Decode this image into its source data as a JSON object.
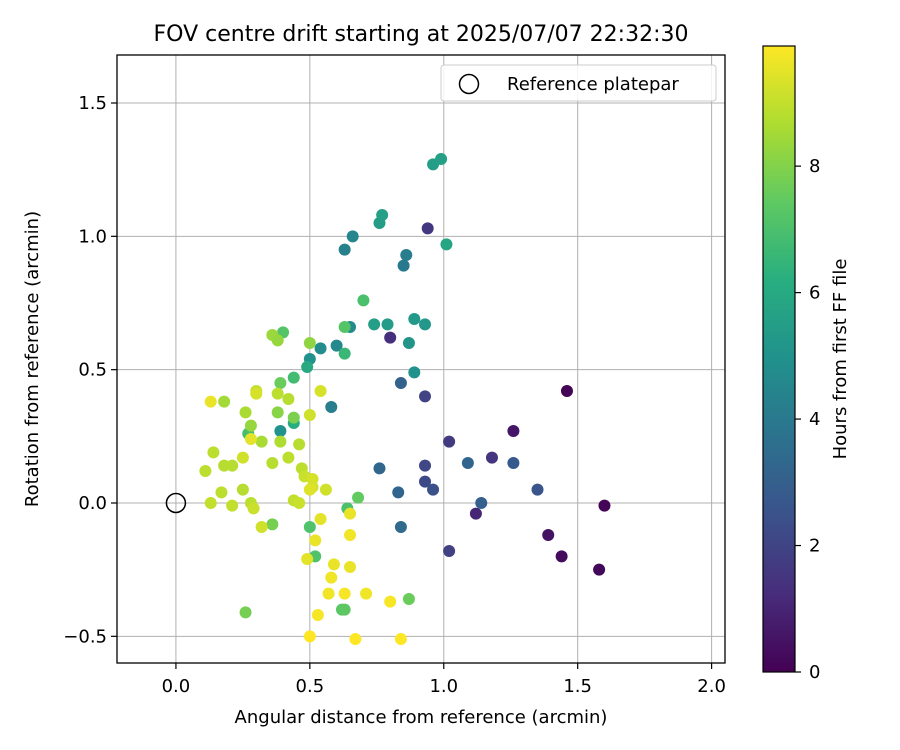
{
  "chart_data": {
    "type": "scatter",
    "title": "FOV centre drift starting at 2025/07/07 22:32:30",
    "xlabel": "Angular distance from reference (arcmin)",
    "ylabel": "Rotation from reference (arcmin)",
    "xlim": [
      -0.22,
      2.05
    ],
    "ylim": [
      -0.6,
      1.68
    ],
    "x_ticks": [
      0.0,
      0.5,
      1.0,
      1.5,
      2.0
    ],
    "x_tick_labels": [
      "0.0",
      "0.5",
      "1.0",
      "1.5",
      "2.0"
    ],
    "y_ticks": [
      -0.5,
      0.0,
      0.5,
      1.0,
      1.5
    ],
    "y_tick_labels": [
      "−0.5",
      "0.0",
      "0.5",
      "1.0",
      "1.5"
    ],
    "grid": true,
    "legend": {
      "placement": "top-right",
      "entries": [
        "Reference platepar"
      ]
    },
    "reference_point": {
      "x": 0.0,
      "y": 0.0,
      "marker": "open-circle"
    },
    "colorbar": {
      "label": "Hours from first FF file",
      "colormap": "viridis",
      "range": [
        0,
        9.9
      ],
      "ticks": [
        0,
        2,
        4,
        6,
        8
      ],
      "tick_labels": [
        "0",
        "2",
        "4",
        "6",
        "8"
      ]
    },
    "series": [
      {
        "color_by": "hours",
        "points": [
          {
            "x": 1.46,
            "y": 0.42,
            "c": 0.1
          },
          {
            "x": 1.6,
            "y": -0.01,
            "c": 0.1
          },
          {
            "x": 1.58,
            "y": -0.25,
            "c": 0.2
          },
          {
            "x": 1.44,
            "y": -0.2,
            "c": 0.3
          },
          {
            "x": 1.39,
            "y": -0.12,
            "c": 0.5
          },
          {
            "x": 1.26,
            "y": 0.27,
            "c": 0.6
          },
          {
            "x": 1.12,
            "y": -0.04,
            "c": 1.0
          },
          {
            "x": 0.8,
            "y": 0.62,
            "c": 1.3
          },
          {
            "x": 1.18,
            "y": 0.17,
            "c": 1.5
          },
          {
            "x": 0.94,
            "y": 1.03,
            "c": 1.6
          },
          {
            "x": 1.02,
            "y": 0.23,
            "c": 1.7
          },
          {
            "x": 1.02,
            "y": -0.18,
            "c": 1.9
          },
          {
            "x": 0.93,
            "y": 0.4,
            "c": 2.0
          },
          {
            "x": 0.93,
            "y": 0.14,
            "c": 2.1
          },
          {
            "x": 0.93,
            "y": 0.08,
            "c": 2.2
          },
          {
            "x": 0.96,
            "y": 0.05,
            "c": 2.4
          },
          {
            "x": 1.35,
            "y": 0.05,
            "c": 2.6
          },
          {
            "x": 1.26,
            "y": 0.15,
            "c": 2.8
          },
          {
            "x": 1.14,
            "y": 0.0,
            "c": 3.0
          },
          {
            "x": 1.09,
            "y": 0.15,
            "c": 3.2
          },
          {
            "x": 0.84,
            "y": 0.45,
            "c": 3.1
          },
          {
            "x": 0.83,
            "y": 0.04,
            "c": 3.2
          },
          {
            "x": 0.76,
            "y": 0.13,
            "c": 3.3
          },
          {
            "x": 0.84,
            "y": -0.09,
            "c": 3.4
          },
          {
            "x": 0.85,
            "y": 0.89,
            "c": 4.0
          },
          {
            "x": 0.86,
            "y": 0.93,
            "c": 4.2
          },
          {
            "x": 0.63,
            "y": 0.95,
            "c": 4.3
          },
          {
            "x": 0.66,
            "y": 1.0,
            "c": 4.5
          },
          {
            "x": 0.58,
            "y": 0.36,
            "c": 4.2
          },
          {
            "x": 0.6,
            "y": 0.59,
            "c": 4.6
          },
          {
            "x": 0.65,
            "y": 0.66,
            "c": 4.7
          },
          {
            "x": 0.54,
            "y": 0.58,
            "c": 4.8
          },
          {
            "x": 0.5,
            "y": 0.54,
            "c": 5.0
          },
          {
            "x": 0.39,
            "y": 0.27,
            "c": 5.0
          },
          {
            "x": 0.89,
            "y": 0.49,
            "c": 5.0
          },
          {
            "x": 0.87,
            "y": 0.6,
            "c": 5.1
          },
          {
            "x": 0.93,
            "y": 0.67,
            "c": 5.2
          },
          {
            "x": 0.89,
            "y": 0.69,
            "c": 5.3
          },
          {
            "x": 0.79,
            "y": 0.67,
            "c": 5.4
          },
          {
            "x": 0.74,
            "y": 0.67,
            "c": 5.5
          },
          {
            "x": 0.76,
            "y": 1.05,
            "c": 5.4
          },
          {
            "x": 0.77,
            "y": 1.08,
            "c": 5.6
          },
          {
            "x": 0.96,
            "y": 1.27,
            "c": 5.5
          },
          {
            "x": 0.99,
            "y": 1.29,
            "c": 5.6
          },
          {
            "x": 1.01,
            "y": 0.97,
            "c": 5.8
          },
          {
            "x": 0.49,
            "y": 0.51,
            "c": 6.0
          },
          {
            "x": 0.44,
            "y": 0.3,
            "c": 6.1
          },
          {
            "x": 0.63,
            "y": 0.56,
            "c": 6.6
          },
          {
            "x": 0.63,
            "y": 0.66,
            "c": 7.2
          },
          {
            "x": 0.7,
            "y": 0.76,
            "c": 7.0
          },
          {
            "x": 0.27,
            "y": 0.26,
            "c": 6.9
          },
          {
            "x": 0.44,
            "y": 0.47,
            "c": 6.8
          },
          {
            "x": 0.4,
            "y": 0.64,
            "c": 7.2
          },
          {
            "x": 0.5,
            "y": -0.09,
            "c": 7.1
          },
          {
            "x": 0.52,
            "y": -0.2,
            "c": 7.1
          },
          {
            "x": 0.64,
            "y": -0.02,
            "c": 7.0
          },
          {
            "x": 0.68,
            "y": 0.02,
            "c": 7.5
          },
          {
            "x": 0.62,
            "y": -0.4,
            "c": 7.3
          },
          {
            "x": 0.63,
            "y": -0.4,
            "c": 7.4
          },
          {
            "x": 0.87,
            "y": -0.36,
            "c": 7.6
          },
          {
            "x": 0.26,
            "y": -0.41,
            "c": 7.8
          },
          {
            "x": 0.36,
            "y": -0.08,
            "c": 7.8
          },
          {
            "x": 0.39,
            "y": 0.45,
            "c": 7.6
          },
          {
            "x": 0.44,
            "y": 0.32,
            "c": 7.9
          },
          {
            "x": 0.36,
            "y": 0.63,
            "c": 8.4
          },
          {
            "x": 0.38,
            "y": 0.61,
            "c": 8.3
          },
          {
            "x": 0.5,
            "y": 0.6,
            "c": 8.2
          },
          {
            "x": 0.18,
            "y": 0.38,
            "c": 8.5
          },
          {
            "x": 0.38,
            "y": 0.34,
            "c": 8.1
          },
          {
            "x": 0.28,
            "y": 0.29,
            "c": 8.3
          },
          {
            "x": 0.32,
            "y": 0.23,
            "c": 8.6
          },
          {
            "x": 0.39,
            "y": 0.23,
            "c": 8.7
          },
          {
            "x": 0.26,
            "y": 0.34,
            "c": 8.6
          },
          {
            "x": 0.42,
            "y": 0.39,
            "c": 8.8
          },
          {
            "x": 0.38,
            "y": 0.41,
            "c": 8.9
          },
          {
            "x": 0.3,
            "y": 0.42,
            "c": 9.0
          },
          {
            "x": 0.36,
            "y": 0.15,
            "c": 8.8
          },
          {
            "x": 0.42,
            "y": 0.17,
            "c": 8.9
          },
          {
            "x": 0.46,
            "y": 0.22,
            "c": 8.8
          },
          {
            "x": 0.14,
            "y": 0.19,
            "c": 8.9
          },
          {
            "x": 0.18,
            "y": 0.14,
            "c": 8.8
          },
          {
            "x": 0.11,
            "y": 0.12,
            "c": 8.9
          },
          {
            "x": 0.21,
            "y": 0.14,
            "c": 8.8
          },
          {
            "x": 0.17,
            "y": 0.04,
            "c": 8.9
          },
          {
            "x": 0.13,
            "y": 0.0,
            "c": 9.0
          },
          {
            "x": 0.21,
            "y": -0.01,
            "c": 9.0
          },
          {
            "x": 0.25,
            "y": 0.05,
            "c": 8.8
          },
          {
            "x": 0.28,
            "y": 0.0,
            "c": 8.9
          },
          {
            "x": 0.29,
            "y": -0.02,
            "c": 9.1
          },
          {
            "x": 0.32,
            "y": -0.09,
            "c": 9.2
          },
          {
            "x": 0.47,
            "y": 0.13,
            "c": 8.9
          },
          {
            "x": 0.48,
            "y": 0.1,
            "c": 9.1
          },
          {
            "x": 0.44,
            "y": 0.01,
            "c": 9.0
          },
          {
            "x": 0.46,
            "y": 0.0,
            "c": 9.1
          },
          {
            "x": 0.51,
            "y": 0.06,
            "c": 9.3
          },
          {
            "x": 0.5,
            "y": 0.05,
            "c": 9.4
          },
          {
            "x": 0.56,
            "y": 0.05,
            "c": 9.2
          },
          {
            "x": 0.51,
            "y": 0.09,
            "c": 9.3
          },
          {
            "x": 0.5,
            "y": 0.33,
            "c": 9.2
          },
          {
            "x": 0.54,
            "y": 0.42,
            "c": 9.3
          },
          {
            "x": 0.3,
            "y": 0.41,
            "c": 9.3
          },
          {
            "x": 0.25,
            "y": 0.17,
            "c": 9.2
          },
          {
            "x": 0.13,
            "y": 0.38,
            "c": 9.6
          },
          {
            "x": 0.28,
            "y": 0.24,
            "c": 9.5
          },
          {
            "x": 0.54,
            "y": -0.06,
            "c": 9.5
          },
          {
            "x": 0.52,
            "y": -0.14,
            "c": 9.6
          },
          {
            "x": 0.49,
            "y": -0.21,
            "c": 9.5
          },
          {
            "x": 0.59,
            "y": -0.23,
            "c": 9.6
          },
          {
            "x": 0.65,
            "y": -0.12,
            "c": 9.7
          },
          {
            "x": 0.65,
            "y": -0.04,
            "c": 9.6
          },
          {
            "x": 0.58,
            "y": -0.28,
            "c": 9.7
          },
          {
            "x": 0.65,
            "y": -0.24,
            "c": 9.6
          },
          {
            "x": 0.57,
            "y": -0.34,
            "c": 9.7
          },
          {
            "x": 0.63,
            "y": -0.34,
            "c": 9.8
          },
          {
            "x": 0.71,
            "y": -0.34,
            "c": 9.7
          },
          {
            "x": 0.8,
            "y": -0.37,
            "c": 9.8
          },
          {
            "x": 0.53,
            "y": -0.42,
            "c": 9.8
          },
          {
            "x": 0.5,
            "y": -0.5,
            "c": 9.9
          },
          {
            "x": 0.67,
            "y": -0.51,
            "c": 9.9
          },
          {
            "x": 0.84,
            "y": -0.51,
            "c": 9.9
          }
        ]
      }
    ]
  }
}
